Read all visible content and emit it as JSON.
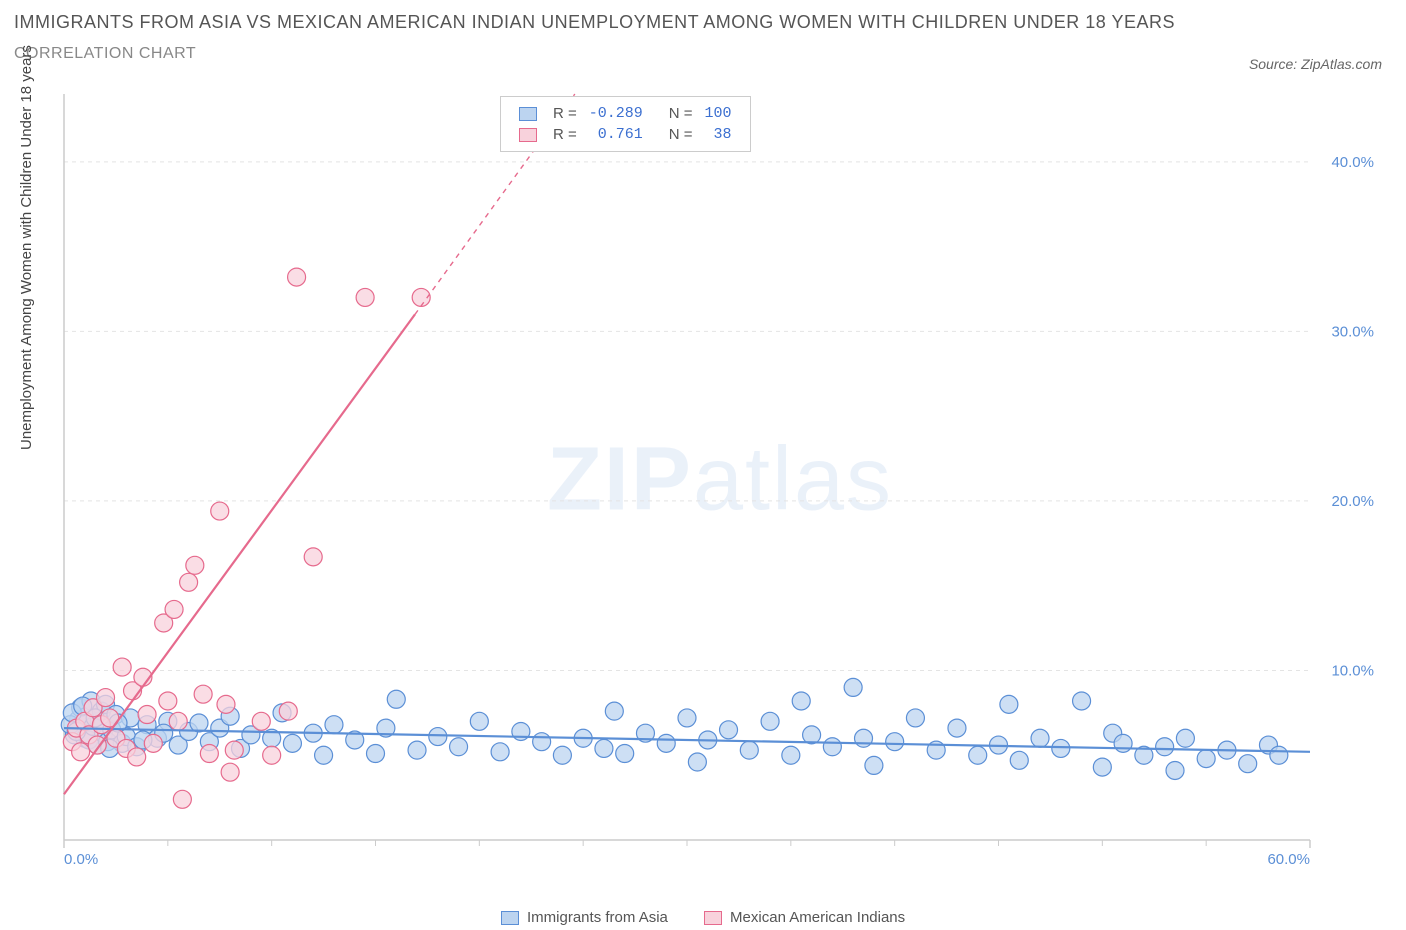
{
  "title": "IMMIGRANTS FROM ASIA VS MEXICAN AMERICAN INDIAN UNEMPLOYMENT AMONG WOMEN WITH CHILDREN UNDER 18 YEARS",
  "subtitle": "CORRELATION CHART",
  "source": "Source: ZipAtlas.com",
  "watermark_a": "ZIP",
  "watermark_b": "atlas",
  "y_axis_label": "Unemployment Among Women with Children Under 18 years",
  "chart": {
    "type": "scatter-with-regression",
    "background_color": "#ffffff",
    "grid_color": "#e4e4e4",
    "axis_color": "#cccccc",
    "tick_color": "#5b8fd6",
    "xlim": [
      0,
      60
    ],
    "ylim": [
      0,
      44
    ],
    "x_ticks": [
      0,
      60
    ],
    "x_tick_labels": [
      "0.0%",
      "60.0%"
    ],
    "y_ticks": [
      10,
      20,
      30,
      40
    ],
    "y_tick_labels": [
      "10.0%",
      "20.0%",
      "30.0%",
      "40.0%"
    ],
    "x_minor_ticks": [
      5,
      10,
      15,
      20,
      25,
      30,
      35,
      40,
      45,
      50,
      55
    ],
    "marker_radius": 9,
    "marker_stroke_width": 1.2
  },
  "series": [
    {
      "key": "asia",
      "label": "Immigrants from Asia",
      "color_fill": "#bcd4f0",
      "color_stroke": "#5b8fd6",
      "r": "-0.289",
      "n": "100",
      "trend": {
        "x1": 0,
        "y1": 6.6,
        "x2": 60,
        "y2": 5.2,
        "dash": false,
        "width": 2.2
      },
      "points": [
        [
          0.5,
          6.2
        ],
        [
          0.7,
          7.1
        ],
        [
          0.8,
          7.8
        ],
        [
          1.0,
          6.0
        ],
        [
          1.1,
          7.3
        ],
        [
          1.2,
          5.9
        ],
        [
          1.3,
          8.2
        ],
        [
          1.4,
          6.7
        ],
        [
          1.6,
          5.6
        ],
        [
          1.7,
          7.0
        ],
        [
          1.8,
          7.6
        ],
        [
          1.9,
          6.3
        ],
        [
          2.0,
          8.0
        ],
        [
          2.1,
          5.8
        ],
        [
          2.3,
          6.5
        ],
        [
          2.5,
          7.4
        ],
        [
          2.8,
          5.7
        ],
        [
          3.0,
          6.1
        ],
        [
          3.2,
          7.2
        ],
        [
          3.5,
          5.5
        ],
        [
          4.0,
          6.8
        ],
        [
          4.5,
          6.0
        ],
        [
          5.0,
          7.0
        ],
        [
          5.5,
          5.6
        ],
        [
          6.0,
          6.4
        ],
        [
          6.5,
          6.9
        ],
        [
          7.0,
          5.8
        ],
        [
          7.5,
          6.6
        ],
        [
          8.0,
          7.3
        ],
        [
          8.5,
          5.4
        ],
        [
          9.0,
          6.2
        ],
        [
          10.0,
          6.0
        ],
        [
          10.5,
          7.5
        ],
        [
          11.0,
          5.7
        ],
        [
          12.0,
          6.3
        ],
        [
          12.5,
          5.0
        ],
        [
          13.0,
          6.8
        ],
        [
          14.0,
          5.9
        ],
        [
          15.0,
          5.1
        ],
        [
          15.5,
          6.6
        ],
        [
          16.0,
          8.3
        ],
        [
          17.0,
          5.3
        ],
        [
          18.0,
          6.1
        ],
        [
          19.0,
          5.5
        ],
        [
          20.0,
          7.0
        ],
        [
          21.0,
          5.2
        ],
        [
          22.0,
          6.4
        ],
        [
          23.0,
          5.8
        ],
        [
          24.0,
          5.0
        ],
        [
          25.0,
          6.0
        ],
        [
          26.0,
          5.4
        ],
        [
          26.5,
          7.6
        ],
        [
          27.0,
          5.1
        ],
        [
          28.0,
          6.3
        ],
        [
          29.0,
          5.7
        ],
        [
          30.0,
          7.2
        ],
        [
          30.5,
          4.6
        ],
        [
          31.0,
          5.9
        ],
        [
          32.0,
          6.5
        ],
        [
          33.0,
          5.3
        ],
        [
          34.0,
          7.0
        ],
        [
          35.0,
          5.0
        ],
        [
          35.5,
          8.2
        ],
        [
          36.0,
          6.2
        ],
        [
          37.0,
          5.5
        ],
        [
          38.0,
          9.0
        ],
        [
          38.5,
          6.0
        ],
        [
          39.0,
          4.4
        ],
        [
          40.0,
          5.8
        ],
        [
          41.0,
          7.2
        ],
        [
          42.0,
          5.3
        ],
        [
          43.0,
          6.6
        ],
        [
          44.0,
          5.0
        ],
        [
          45.0,
          5.6
        ],
        [
          45.5,
          8.0
        ],
        [
          46.0,
          4.7
        ],
        [
          47.0,
          6.0
        ],
        [
          48.0,
          5.4
        ],
        [
          49.0,
          8.2
        ],
        [
          50.0,
          4.3
        ],
        [
          50.5,
          6.3
        ],
        [
          51.0,
          5.7
        ],
        [
          52.0,
          5.0
        ],
        [
          53.0,
          5.5
        ],
        [
          53.5,
          4.1
        ],
        [
          54.0,
          6.0
        ],
        [
          55.0,
          4.8
        ],
        [
          56.0,
          5.3
        ],
        [
          57.0,
          4.5
        ],
        [
          58.0,
          5.6
        ],
        [
          58.5,
          5.0
        ],
        [
          0.3,
          6.8
        ],
        [
          0.4,
          7.5
        ],
        [
          0.6,
          6.4
        ],
        [
          0.9,
          7.9
        ],
        [
          1.5,
          7.2
        ],
        [
          2.2,
          5.4
        ],
        [
          2.6,
          6.9
        ],
        [
          3.8,
          5.9
        ],
        [
          4.8,
          6.3
        ]
      ]
    },
    {
      "key": "mexican",
      "label": "Mexican American Indians",
      "color_fill": "#f8d2dc",
      "color_stroke": "#e66a8d",
      "r": "0.761",
      "n": "38",
      "trend": {
        "x1": 0,
        "y1": 2.7,
        "x2": 16.9,
        "y2": 31.0,
        "dash": false,
        "width": 2.2
      },
      "trend_dash": {
        "x1": 16.9,
        "y1": 31.0,
        "x2": 24.6,
        "y2": 44.0
      },
      "points": [
        [
          0.4,
          5.8
        ],
        [
          0.6,
          6.6
        ],
        [
          0.8,
          5.2
        ],
        [
          1.0,
          7.0
        ],
        [
          1.2,
          6.2
        ],
        [
          1.4,
          7.8
        ],
        [
          1.6,
          5.6
        ],
        [
          1.8,
          6.8
        ],
        [
          2.0,
          8.4
        ],
        [
          2.2,
          7.2
        ],
        [
          2.5,
          6.0
        ],
        [
          2.8,
          10.2
        ],
        [
          3.0,
          5.4
        ],
        [
          3.3,
          8.8
        ],
        [
          3.5,
          4.9
        ],
        [
          3.8,
          9.6
        ],
        [
          4.0,
          7.4
        ],
        [
          4.3,
          5.7
        ],
        [
          4.8,
          12.8
        ],
        [
          5.0,
          8.2
        ],
        [
          5.3,
          13.6
        ],
        [
          5.5,
          7.0
        ],
        [
          5.7,
          2.4
        ],
        [
          6.0,
          15.2
        ],
        [
          6.3,
          16.2
        ],
        [
          6.7,
          8.6
        ],
        [
          7.0,
          5.1
        ],
        [
          7.5,
          19.4
        ],
        [
          7.8,
          8.0
        ],
        [
          8.2,
          5.3
        ],
        [
          9.5,
          7.0
        ],
        [
          10.0,
          5.0
        ],
        [
          10.8,
          7.6
        ],
        [
          11.2,
          33.2
        ],
        [
          12.0,
          16.7
        ],
        [
          14.5,
          32.0
        ],
        [
          17.2,
          32.0
        ],
        [
          8.0,
          4.0
        ]
      ]
    }
  ],
  "legend_box": {
    "r_label": "R =",
    "n_label": "N ="
  },
  "bottom_legend": {
    "items": [
      "asia",
      "mexican"
    ]
  }
}
